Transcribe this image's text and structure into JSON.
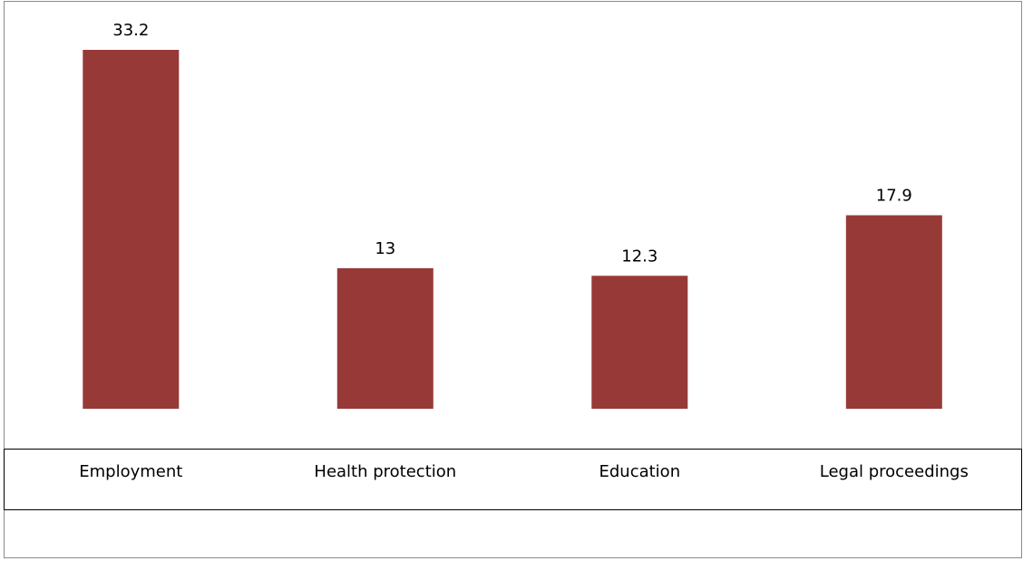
{
  "chart_data": {
    "type": "bar",
    "categories": [
      "Employment",
      "Health protection",
      "Education",
      "Legal proceedings"
    ],
    "values": [
      33.2,
      13,
      12.3,
      17.9
    ],
    "data_labels": [
      "33.2",
      "13",
      "12.3",
      "17.9"
    ],
    "title": "",
    "xlabel": "",
    "ylabel": "",
    "ylim": [
      0,
      33.2
    ],
    "grid": false,
    "legend": "none",
    "bar_color": "#973A37"
  }
}
